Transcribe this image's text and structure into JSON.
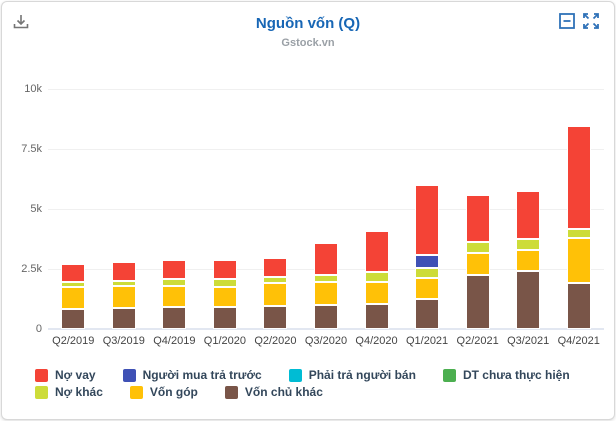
{
  "card": {
    "title": "Nguồn vốn (Q)",
    "subtitle": "Gstock.vn",
    "title_color": "#1766b5",
    "icons": {
      "download": "download-icon",
      "collapse": "box-minus-icon",
      "fullscreen": "expand-arrows-icon"
    },
    "icon_colors": {
      "download": "#757575",
      "header_right": "#2f72b8"
    }
  },
  "chart_data": {
    "type": "bar",
    "stacked": true,
    "title": "Nguồn vốn (Q)",
    "subtitle": "Gstock.vn",
    "grid": true,
    "legend_position": "bottom",
    "xlabel": "",
    "ylabel": "",
    "ylim": [
      0,
      10500
    ],
    "y_ticks": [
      {
        "v": 0,
        "label": "0"
      },
      {
        "v": 2500,
        "label": "2.5k"
      },
      {
        "v": 5000,
        "label": "5k"
      },
      {
        "v": 7500,
        "label": "7.5k"
      },
      {
        "v": 10000,
        "label": "10k"
      }
    ],
    "categories": [
      "Q2/2019",
      "Q3/2019",
      "Q4/2019",
      "Q1/2020",
      "Q2/2020",
      "Q3/2020",
      "Q4/2020",
      "Q1/2021",
      "Q2/2021",
      "Q3/2021",
      "Q4/2021"
    ],
    "series": [
      {
        "name": "Nợ vay",
        "color": "#f44336",
        "values": [
          750,
          780,
          790,
          800,
          830,
          1300,
          1710,
          2920,
          1950,
          2000,
          4280
        ]
      },
      {
        "name": "Người mua trả trước",
        "color": "#3f51b5",
        "values": [
          0,
          0,
          0,
          0,
          0,
          0,
          0,
          530,
          0,
          0,
          0
        ]
      },
      {
        "name": "Phải trả người bán",
        "color": "#00bcd4",
        "values": [
          0,
          0,
          0,
          0,
          0,
          0,
          0,
          0,
          0,
          0,
          0
        ]
      },
      {
        "name": "DT chưa thực hiện",
        "color": "#4caf50",
        "values": [
          0,
          0,
          0,
          0,
          0,
          0,
          0,
          0,
          0,
          0,
          0
        ]
      },
      {
        "name": "Nợ khác",
        "color": "#cddc39",
        "values": [
          220,
          230,
          300,
          300,
          250,
          320,
          430,
          420,
          470,
          480,
          370
        ]
      },
      {
        "name": "Vốn góp",
        "color": "#ffc107",
        "values": [
          900,
          900,
          880,
          870,
          950,
          950,
          880,
          860,
          900,
          880,
          1860
        ]
      },
      {
        "name": "Vốn chủ khác",
        "color": "#795548",
        "values": [
          850,
          880,
          900,
          900,
          950,
          1000,
          1060,
          1260,
          2250,
          2400,
          1930
        ]
      }
    ],
    "stack_order_bottom_to_top": [
      "Vốn chủ khác",
      "Vốn góp",
      "Nợ khác",
      "DT chưa thực hiện",
      "Phải trả người bán",
      "Người mua trả trước",
      "Nợ vay"
    ]
  }
}
